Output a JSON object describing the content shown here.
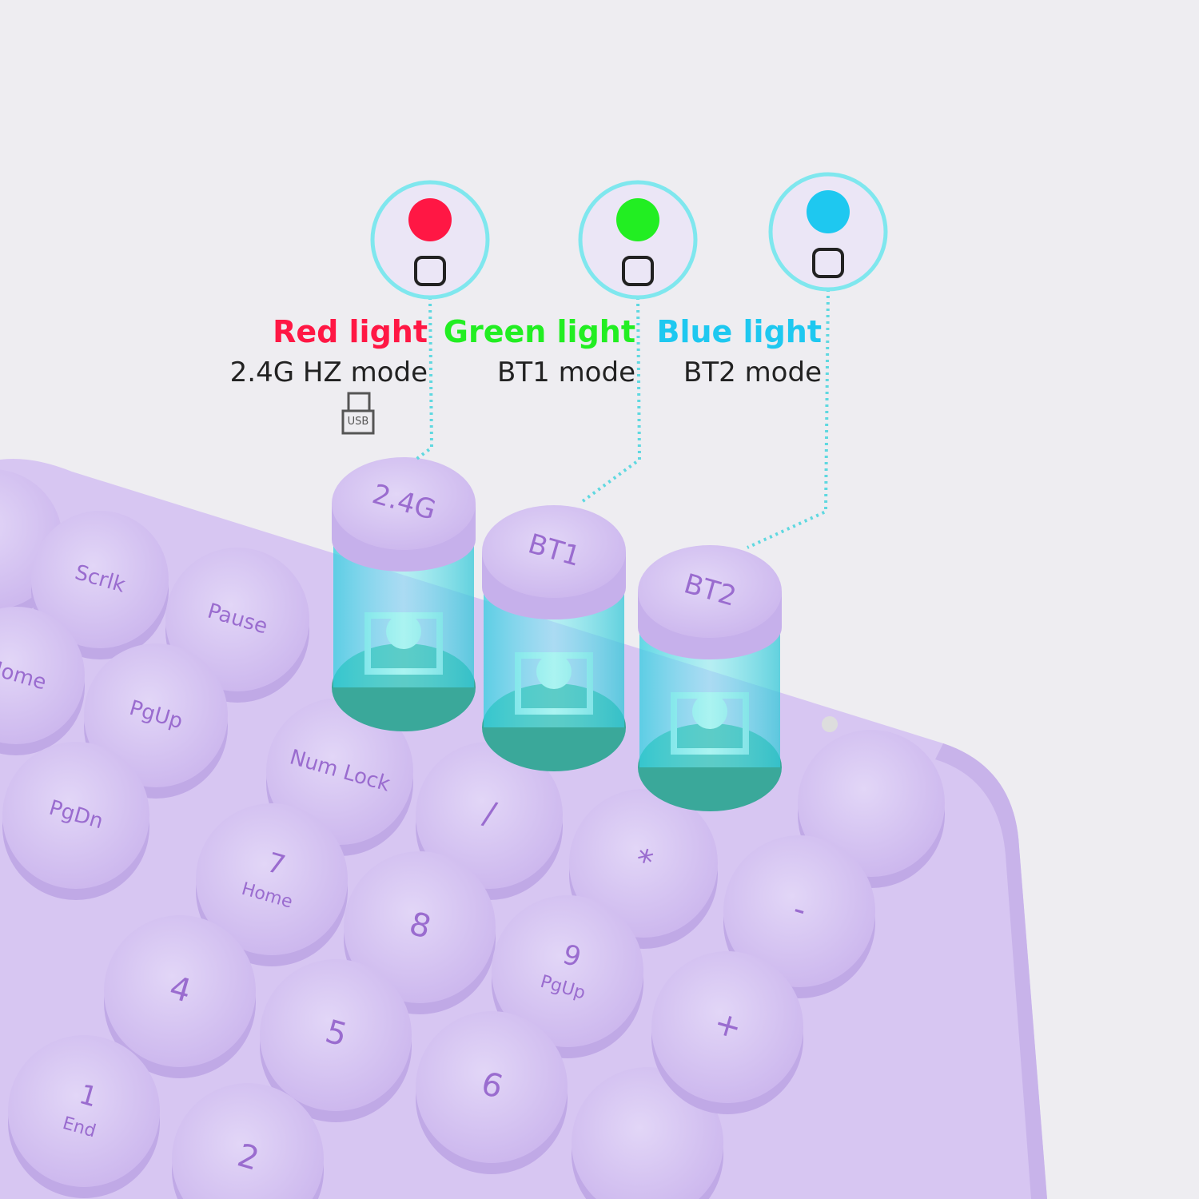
{
  "indicators": [
    {
      "label": "Red light",
      "mode": "2.4G HZ mode",
      "color": "#ff1744"
    },
    {
      "label": "Green light",
      "mode": "BT1 mode",
      "color": "#22ee22"
    },
    {
      "label": "Blue light",
      "mode": "BT2 mode",
      "color": "#1ec8f0"
    }
  ],
  "usb_label": "USB",
  "mode_keys": [
    "2.4G",
    "BT1",
    "BT2"
  ],
  "keys": [
    {
      "main": "Scrlk"
    },
    {
      "main": "Pause"
    },
    {
      "main": "Home"
    },
    {
      "main": "PgUp"
    },
    {
      "main": "PgDn"
    },
    {
      "main": "Num Lock"
    },
    {
      "main": "/"
    },
    {
      "main": "7",
      "sub": "Home"
    },
    {
      "main": "*"
    },
    {
      "main": "8"
    },
    {
      "main": "-"
    },
    {
      "main": "4"
    },
    {
      "main": "9",
      "sub": "PgUp"
    },
    {
      "main": "+"
    },
    {
      "main": "5"
    },
    {
      "main": "1",
      "sub": "End"
    },
    {
      "main": "6"
    },
    {
      "main": "2"
    }
  ]
}
